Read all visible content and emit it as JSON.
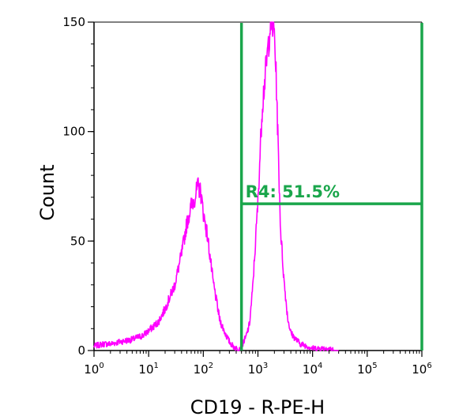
{
  "chart_data": {
    "type": "histogram",
    "title": "",
    "xlabel": "CD19 - R-PE-H",
    "ylabel": "Count",
    "x_scale": "log",
    "xlim": [
      1,
      1000000
    ],
    "ylim": [
      0,
      150
    ],
    "x_ticks": [
      {
        "base": "10",
        "exp": "0",
        "value": 1
      },
      {
        "base": "10",
        "exp": "1",
        "value": 10
      },
      {
        "base": "10",
        "exp": "2",
        "value": 100
      },
      {
        "base": "10",
        "exp": "3",
        "value": 1000
      },
      {
        "base": "10",
        "exp": "4",
        "value": 10000
      },
      {
        "base": "10",
        "exp": "5",
        "value": 100000
      },
      {
        "base": "10",
        "exp": "6",
        "value": 1000000
      }
    ],
    "y_ticks": [
      {
        "label": "0",
        "value": 0
      },
      {
        "label": "50",
        "value": 50
      },
      {
        "label": "100",
        "value": 100
      },
      {
        "label": "150",
        "value": 150
      }
    ],
    "grid": false,
    "series": [
      {
        "color": "#ff00ff",
        "x": [
          1,
          1.5,
          2,
          3,
          5,
          8,
          10,
          15,
          20,
          30,
          40,
          50,
          60,
          70,
          80,
          90,
          100,
          120,
          150,
          200,
          250,
          300,
          350,
          400,
          450,
          500,
          600,
          700,
          800,
          1000,
          1200,
          1500,
          1700,
          1900,
          2000,
          2100,
          2200,
          2400,
          2600,
          3000,
          3500,
          4000,
          5000,
          6000,
          8000,
          10000,
          15000,
          20000,
          25000,
          30000
        ],
        "y": [
          2,
          3,
          3,
          4,
          5,
          7,
          9,
          13,
          19,
          30,
          44,
          58,
          66,
          70,
          75,
          72,
          63,
          52,
          32,
          14,
          8,
          4,
          2,
          1,
          1,
          2,
          6,
          12,
          28,
          68,
          112,
          136,
          150,
          148,
          145,
          132,
          118,
          84,
          55,
          32,
          15,
          8,
          5,
          3,
          2,
          1,
          1,
          1,
          0,
          0
        ]
      }
    ],
    "gate": {
      "label": "R4: 51.5%",
      "color": "#1aa64b",
      "x_start": 500,
      "x_end": 1000000,
      "y_level": 67
    }
  }
}
